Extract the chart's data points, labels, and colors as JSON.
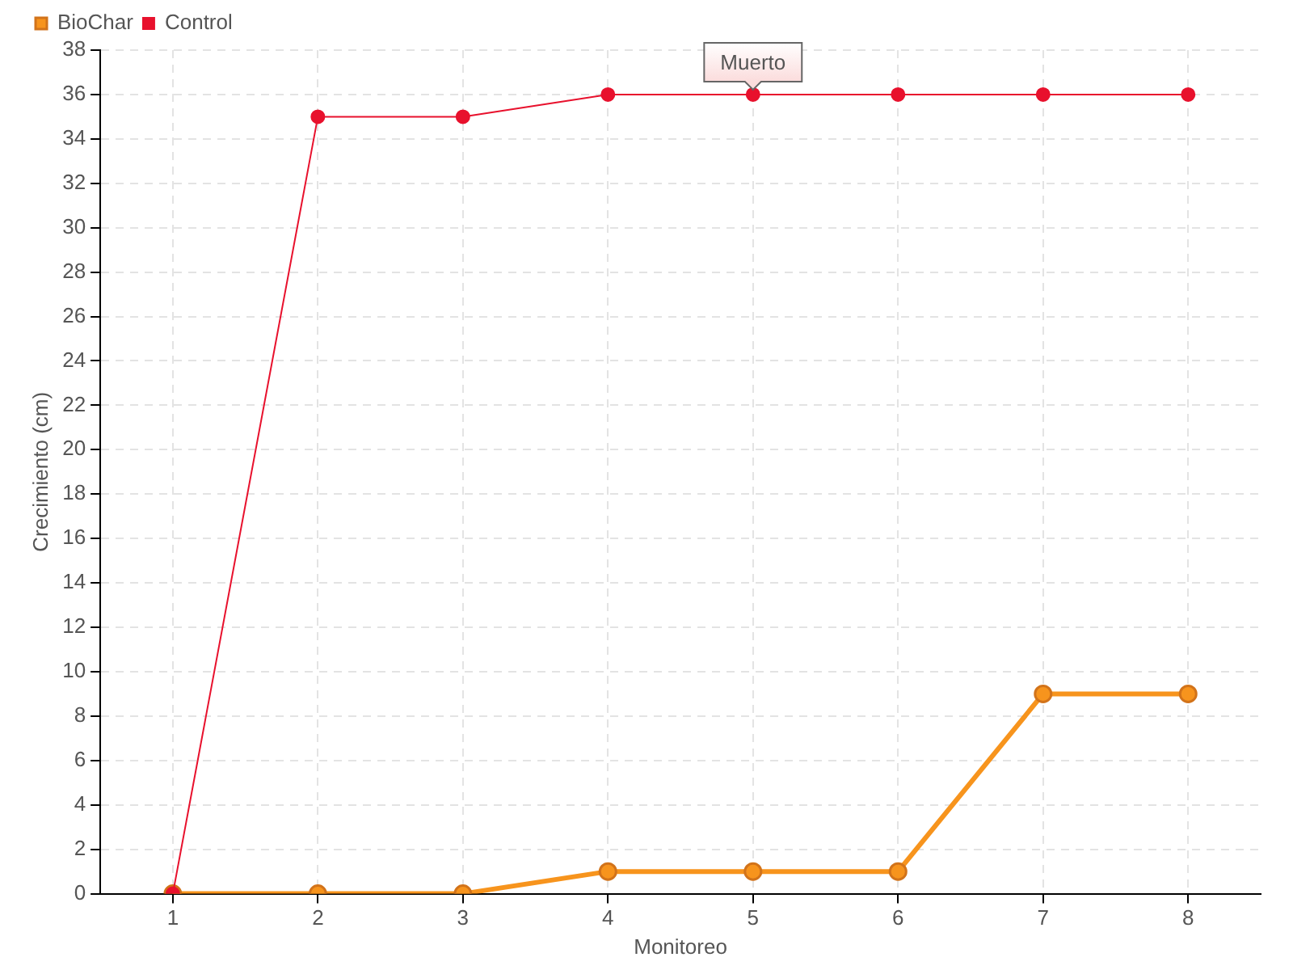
{
  "chart_data": {
    "type": "line",
    "xlabel": "Monitoreo",
    "ylabel": "Crecimiento (cm)",
    "categories": [
      "1",
      "2",
      "3",
      "4",
      "5",
      "6",
      "7",
      "8"
    ],
    "series": [
      {
        "name": "BioChar",
        "color": "#f7941d",
        "values": [
          0,
          0,
          0,
          1,
          1,
          1,
          9,
          9
        ]
      },
      {
        "name": "Control",
        "color": "#e8112d",
        "values": [
          0,
          35,
          35,
          36,
          36,
          36,
          36,
          36
        ]
      }
    ],
    "ylim": [
      0,
      38
    ],
    "yticks": [
      0,
      2,
      4,
      6,
      8,
      10,
      12,
      14,
      16,
      18,
      20,
      22,
      24,
      26,
      28,
      30,
      32,
      34,
      36,
      38
    ],
    "grid": true,
    "legend": "top left",
    "marker": "circle",
    "line_style": "solid",
    "annotations": [
      {
        "text": "Muerto",
        "x": "5",
        "y": 36
      }
    ]
  }
}
